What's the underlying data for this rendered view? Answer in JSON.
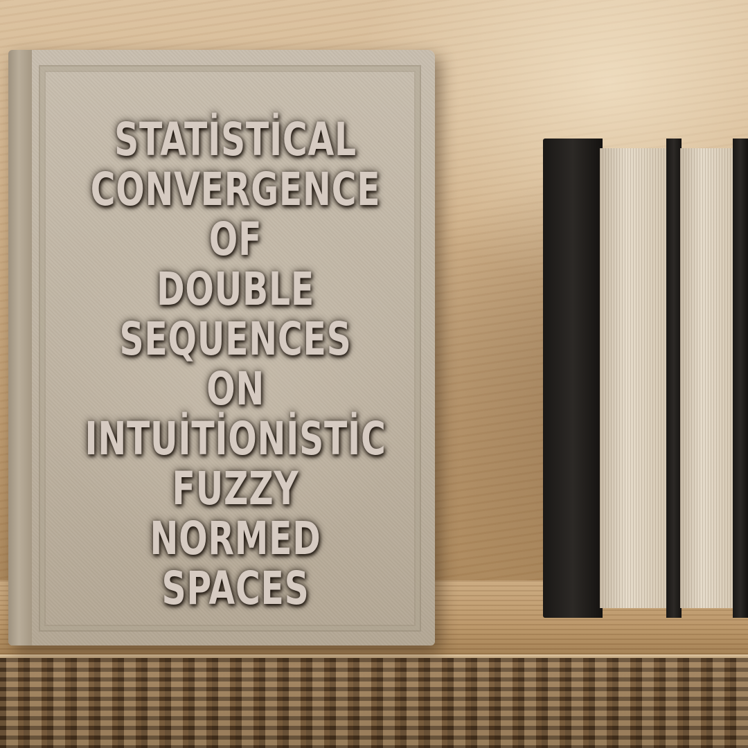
{
  "cover": {
    "title": "STATİSTİCAL\nCONVERGENCE OF\nDOUBLE\nSEQUENCES ON\nINTUİTİONİSTİC\nFUZZY NORMED\nSPACES"
  },
  "colors": {
    "wall": "#cfb089",
    "shelf": "#b89365",
    "cover": "#c0b5a4",
    "title_text": "#d6cbc2",
    "hardcover": "#1f1c1a"
  }
}
